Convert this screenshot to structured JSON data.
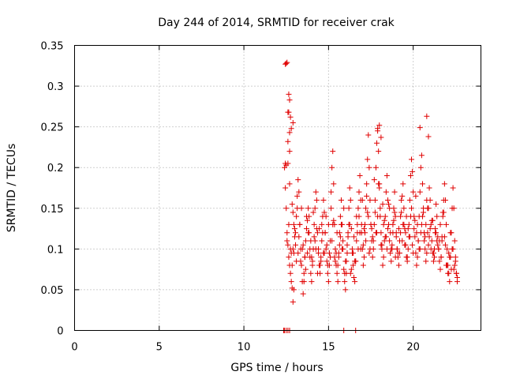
{
  "chart_data": {
    "type": "scatter",
    "title": "Day 244 of 2014, SRMTID for receiver crak",
    "xlabel": "GPS time / hours",
    "ylabel": "SRMTID / TECUs",
    "xlim": [
      0,
      24
    ],
    "ylim": [
      0,
      0.35
    ],
    "xticks": [
      0,
      5,
      10,
      15,
      20
    ],
    "xtick_labels": [
      "0",
      "5",
      "10",
      "15",
      "20"
    ],
    "yticks": [
      0,
      0.05,
      0.1,
      0.15,
      0.2,
      0.25,
      0.3,
      0.35
    ],
    "ytick_labels": [
      "0",
      "0.05",
      "0.1",
      "0.15",
      "0.2",
      "0.25",
      "0.3",
      "0.35"
    ],
    "grid": true,
    "legend": "none",
    "marker": "plus",
    "color": "#e00000",
    "series": [
      {
        "x": [
          12.45,
          12.5,
          12.55,
          12.6,
          12.65,
          12.7,
          12.75,
          12.8,
          12.85,
          12.9,
          12.95,
          13.0,
          12.4,
          12.45,
          12.5,
          12.55,
          12.6,
          12.65,
          12.7,
          12.75,
          12.8,
          12.85,
          12.9,
          12.95,
          13.05,
          13.1,
          13.15,
          13.2,
          13.25,
          13.3,
          13.35,
          13.4,
          13.45,
          13.5,
          13.55,
          13.6,
          13.65,
          13.7,
          13.75,
          13.8,
          13.85,
          13.9,
          13.95,
          14.0,
          14.05,
          14.1,
          14.15,
          14.2,
          14.25,
          14.3,
          14.35,
          14.4,
          14.45,
          14.5,
          14.55,
          14.6,
          14.65,
          14.7,
          14.75,
          14.8,
          14.85,
          14.9,
          14.95,
          15.0,
          15.05,
          15.1,
          15.15,
          15.2,
          15.25,
          15.3,
          15.35,
          15.4,
          15.45,
          15.5,
          15.55,
          15.6,
          15.65,
          15.7,
          15.75,
          15.8,
          15.85,
          15.9,
          15.95,
          16.0,
          16.05,
          16.1,
          16.15,
          16.2,
          16.25,
          16.3,
          16.35,
          16.4,
          16.45,
          16.5,
          16.55,
          16.6,
          16.65,
          16.7,
          16.75,
          16.8,
          16.85,
          16.9,
          16.95,
          17.0,
          17.05,
          17.1,
          17.15,
          17.2,
          17.25,
          17.3,
          17.35,
          17.4,
          17.45,
          17.5,
          17.55,
          17.6,
          17.65,
          17.7,
          17.75,
          17.8,
          17.85,
          17.9,
          17.95,
          18.0,
          18.05,
          18.1,
          18.15,
          18.2,
          18.25,
          18.3,
          18.35,
          18.4,
          18.45,
          18.5,
          18.55,
          18.6,
          18.65,
          18.7,
          18.75,
          18.8,
          18.85,
          18.9,
          18.95,
          19.0,
          19.05,
          19.1,
          19.15,
          19.2,
          19.25,
          19.3,
          19.35,
          19.4,
          19.45,
          19.5,
          19.55,
          19.6,
          19.65,
          19.7,
          19.75,
          19.8,
          19.85,
          19.9,
          19.95,
          20.0,
          20.05,
          20.1,
          20.15,
          20.2,
          20.25,
          20.3,
          20.35,
          20.4,
          20.45,
          20.5,
          20.55,
          20.6,
          20.65,
          20.7,
          20.75,
          20.8,
          20.85,
          20.9,
          20.95,
          21.0,
          21.05,
          21.1,
          21.15,
          21.2,
          21.25,
          21.3,
          21.35,
          21.4,
          21.45,
          21.5,
          21.55,
          21.6,
          21.65,
          21.7,
          21.75,
          21.8,
          21.85,
          21.9,
          21.95,
          22.0,
          22.05,
          22.1,
          22.15,
          22.2,
          22.25,
          22.3,
          22.35,
          22.4,
          22.45,
          22.5,
          22.55,
          22.6,
          12.55,
          12.65,
          12.75,
          12.85,
          12.95,
          13.05,
          13.15,
          13.25,
          13.35,
          13.45,
          13.55,
          13.65,
          13.75,
          13.85,
          13.95,
          14.05,
          14.15,
          14.25,
          14.35,
          14.45,
          14.55,
          14.65,
          14.75,
          14.85,
          14.95,
          15.05,
          15.15,
          15.25,
          15.35,
          15.45,
          15.55,
          15.65,
          15.75,
          15.85,
          15.95,
          16.05,
          16.15,
          16.25,
          16.35,
          16.45,
          16.55,
          16.65,
          16.75,
          16.85,
          16.95,
          17.05,
          17.15,
          17.25,
          17.35,
          17.45,
          17.55,
          17.65,
          17.75,
          17.85,
          17.95,
          18.05,
          18.15,
          18.25,
          18.35,
          18.45,
          18.55,
          18.65,
          18.75,
          18.85,
          18.95,
          19.05,
          19.15,
          19.25,
          19.35,
          19.45,
          19.55,
          19.65,
          19.75,
          19.85,
          19.95,
          20.05,
          20.15,
          20.25,
          20.35,
          20.45,
          20.55,
          20.65,
          20.75,
          20.85,
          20.95,
          21.05,
          21.15,
          21.25,
          21.35,
          21.45,
          21.55,
          21.65,
          21.75,
          21.85,
          21.95,
          22.05,
          22.15,
          22.25,
          22.35,
          22.45,
          22.55,
          22.6,
          12.6,
          12.7,
          12.8,
          12.9,
          13.0,
          13.1,
          13.2,
          13.3,
          13.4,
          13.5,
          13.6,
          13.7,
          13.8,
          13.9,
          14.0,
          14.1,
          14.2,
          14.3,
          14.4,
          14.5,
          14.6,
          14.7,
          14.8,
          14.9,
          15.0,
          15.1,
          15.2,
          15.3,
          15.4,
          15.5,
          15.6,
          15.7,
          15.8,
          15.9,
          16.0,
          16.1,
          16.2,
          16.3,
          16.4,
          16.5,
          16.6,
          16.7,
          16.8,
          16.9,
          17.0,
          17.1,
          17.2,
          17.3,
          17.4,
          17.5,
          17.6,
          17.7,
          17.8,
          17.9,
          18.0,
          18.1,
          18.2,
          18.3,
          18.4,
          18.5,
          18.6,
          18.7,
          18.8,
          18.9,
          19.0,
          19.1,
          19.2,
          19.3,
          19.4,
          19.5,
          19.6,
          19.7,
          19.8,
          19.9,
          20.0,
          20.1,
          20.2,
          20.3,
          20.4,
          20.5,
          20.6,
          20.7,
          20.8,
          20.9,
          21.0,
          21.1,
          21.2,
          21.3,
          21.4,
          21.5,
          21.6,
          21.7,
          21.8,
          21.9,
          22.0,
          22.1,
          22.2,
          22.3,
          22.4,
          22.5,
          12.6,
          12.7,
          12.9,
          12.65,
          12.45,
          12.5,
          12.7,
          17.9,
          18.0,
          18.1,
          20.8,
          20.4,
          20.9,
          12.35,
          12.4,
          12.5,
          12.6,
          12.7,
          15.9,
          16.6
        ],
        "y": [
          0.327,
          0.328,
          0.329,
          0.268,
          0.29,
          0.283,
          0.262,
          0.248,
          0.155,
          0.145,
          0.13,
          0.125,
          0.2,
          0.175,
          0.15,
          0.12,
          0.105,
          0.09,
          0.08,
          0.07,
          0.06,
          0.052,
          0.035,
          0.05,
          0.12,
          0.14,
          0.165,
          0.185,
          0.17,
          0.13,
          0.1,
          0.08,
          0.06,
          0.045,
          0.07,
          0.09,
          0.11,
          0.125,
          0.135,
          0.15,
          0.12,
          0.09,
          0.07,
          0.06,
          0.08,
          0.1,
          0.13,
          0.15,
          0.17,
          0.16,
          0.12,
          0.095,
          0.08,
          0.07,
          0.09,
          0.11,
          0.14,
          0.16,
          0.145,
          0.12,
          0.1,
          0.085,
          0.07,
          0.06,
          0.08,
          0.11,
          0.15,
          0.2,
          0.22,
          0.18,
          0.13,
          0.1,
          0.08,
          0.07,
          0.06,
          0.09,
          0.12,
          0.14,
          0.16,
          0.13,
          0.1,
          0.075,
          0.06,
          0.05,
          0.07,
          0.095,
          0.12,
          0.15,
          0.175,
          0.16,
          0.125,
          0.1,
          0.08,
          0.065,
          0.06,
          0.085,
          0.11,
          0.13,
          0.15,
          0.17,
          0.19,
          0.16,
          0.13,
          0.1,
          0.08,
          0.09,
          0.12,
          0.15,
          0.18,
          0.21,
          0.24,
          0.2,
          0.16,
          0.13,
          0.11,
          0.09,
          0.1,
          0.13,
          0.16,
          0.2,
          0.23,
          0.245,
          0.22,
          0.18,
          0.15,
          0.12,
          0.1,
          0.08,
          0.09,
          0.11,
          0.14,
          0.17,
          0.19,
          0.16,
          0.13,
          0.11,
          0.095,
          0.085,
          0.1,
          0.12,
          0.15,
          0.17,
          0.14,
          0.115,
          0.1,
          0.09,
          0.08,
          0.095,
          0.12,
          0.145,
          0.165,
          0.18,
          0.15,
          0.125,
          0.105,
          0.09,
          0.085,
          0.1,
          0.13,
          0.16,
          0.19,
          0.21,
          0.195,
          0.17,
          0.14,
          0.115,
          0.095,
          0.08,
          0.09,
          0.11,
          0.14,
          0.17,
          0.2,
          0.215,
          0.18,
          0.15,
          0.12,
          0.1,
          0.085,
          0.095,
          0.12,
          0.15,
          0.175,
          0.16,
          0.13,
          0.11,
          0.095,
          0.085,
          0.1,
          0.125,
          0.155,
          0.14,
          0.115,
          0.1,
          0.085,
          0.075,
          0.09,
          0.11,
          0.14,
          0.16,
          0.18,
          0.16,
          0.13,
          0.1,
          0.08,
          0.07,
          0.06,
          0.09,
          0.12,
          0.15,
          0.175,
          0.15,
          0.11,
          0.085,
          0.07,
          0.06,
          0.11,
          0.13,
          0.1,
          0.08,
          0.095,
          0.105,
          0.15,
          0.115,
          0.085,
          0.1,
          0.06,
          0.075,
          0.095,
          0.14,
          0.11,
          0.085,
          0.115,
          0.1,
          0.07,
          0.125,
          0.085,
          0.12,
          0.095,
          0.14,
          0.08,
          0.095,
          0.17,
          0.13,
          0.09,
          0.095,
          0.08,
          0.105,
          0.13,
          0.11,
          0.07,
          0.085,
          0.115,
          0.13,
          0.075,
          0.095,
          0.085,
          0.14,
          0.1,
          0.12,
          0.12,
          0.105,
          0.13,
          0.165,
          0.14,
          0.1,
          0.125,
          0.11,
          0.145,
          0.12,
          0.18,
          0.14,
          0.105,
          0.13,
          0.115,
          0.1,
          0.155,
          0.12,
          0.105,
          0.135,
          0.09,
          0.1,
          0.125,
          0.14,
          0.11,
          0.13,
          0.12,
          0.09,
          0.115,
          0.14,
          0.105,
          0.125,
          0.165,
          0.13,
          0.1,
          0.12,
          0.14,
          0.11,
          0.13,
          0.15,
          0.115,
          0.1,
          0.135,
          0.09,
          0.12,
          0.105,
          0.11,
          0.09,
          0.145,
          0.115,
          0.08,
          0.07,
          0.09,
          0.075,
          0.1,
          0.08,
          0.07,
          0.065,
          0.205,
          0.18,
          0.095,
          0.1,
          0.115,
          0.085,
          0.095,
          0.13,
          0.15,
          0.105,
          0.09,
          0.14,
          0.12,
          0.1,
          0.09,
          0.145,
          0.11,
          0.125,
          0.1,
          0.08,
          0.13,
          0.095,
          0.12,
          0.105,
          0.13,
          0.09,
          0.11,
          0.135,
          0.085,
          0.12,
          0.095,
          0.115,
          0.1,
          0.15,
          0.085,
          0.105,
          0.13,
          0.07,
          0.095,
          0.115,
          0.085,
          0.12,
          0.14,
          0.1,
          0.16,
          0.125,
          0.11,
          0.145,
          0.095,
          0.13,
          0.115,
          0.185,
          0.12,
          0.14,
          0.175,
          0.105,
          0.155,
          0.135,
          0.115,
          0.125,
          0.15,
          0.1,
          0.13,
          0.145,
          0.12,
          0.095,
          0.11,
          0.16,
          0.13,
          0.105,
          0.14,
          0.125,
          0.115,
          0.15,
          0.095,
          0.135,
          0.12,
          0.11,
          0.1,
          0.13,
          0.145,
          0.115,
          0.16,
          0.105,
          0.125,
          0.135,
          0.095,
          0.12,
          0.11,
          0.1,
          0.13,
          0.115,
          0.145,
          0.105,
          0.08,
          0.095,
          0.12,
          0.1,
          0.075,
          0.09,
          0.232,
          0.243,
          0.255,
          0.268,
          0.205,
          0.203,
          0.22,
          0.248,
          0.252,
          0.237,
          0.263,
          0.249,
          0.238,
          0.0,
          0.0,
          0.0,
          0.0,
          0.0,
          0.0,
          0.0
        ]
      }
    ]
  }
}
